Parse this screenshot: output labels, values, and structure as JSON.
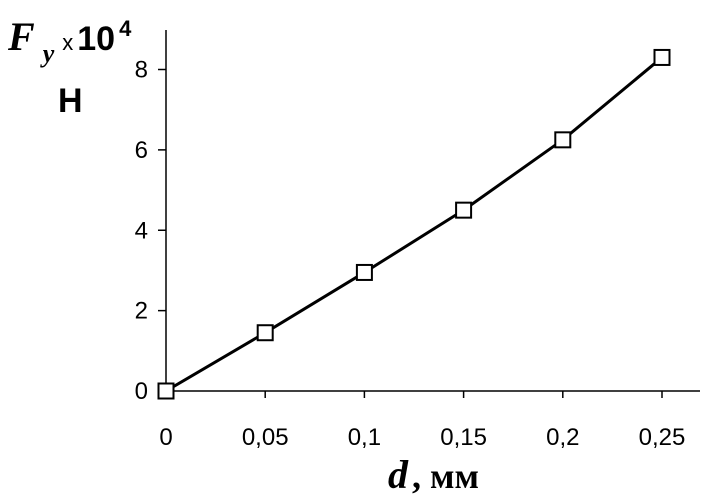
{
  "chart_data": {
    "type": "line",
    "x": [
      0,
      0.05,
      0.1,
      0.15,
      0.2,
      0.25
    ],
    "series": [
      {
        "values": [
          0,
          1.45,
          2.95,
          4.5,
          6.25,
          8.3
        ]
      }
    ],
    "xlim": [
      0,
      0.25
    ],
    "ylim": [
      0,
      9
    ],
    "x_ticks": [
      "0",
      "0,05",
      "0,1",
      "0,15",
      "0,2",
      "0,25"
    ],
    "y_ticks": [
      "0",
      "2",
      "4",
      "6",
      "8"
    ],
    "y_tick_values": [
      0,
      2,
      4,
      6,
      8
    ],
    "ylabel": {
      "var": "F",
      "sub": "y",
      "times": "x",
      "ten": "10",
      "exp": "4",
      "unit": "Н"
    },
    "xlabel": {
      "var": "d",
      "unit": ", мм"
    },
    "grid": false,
    "marker": "open-square",
    "line_color": "#000000"
  }
}
